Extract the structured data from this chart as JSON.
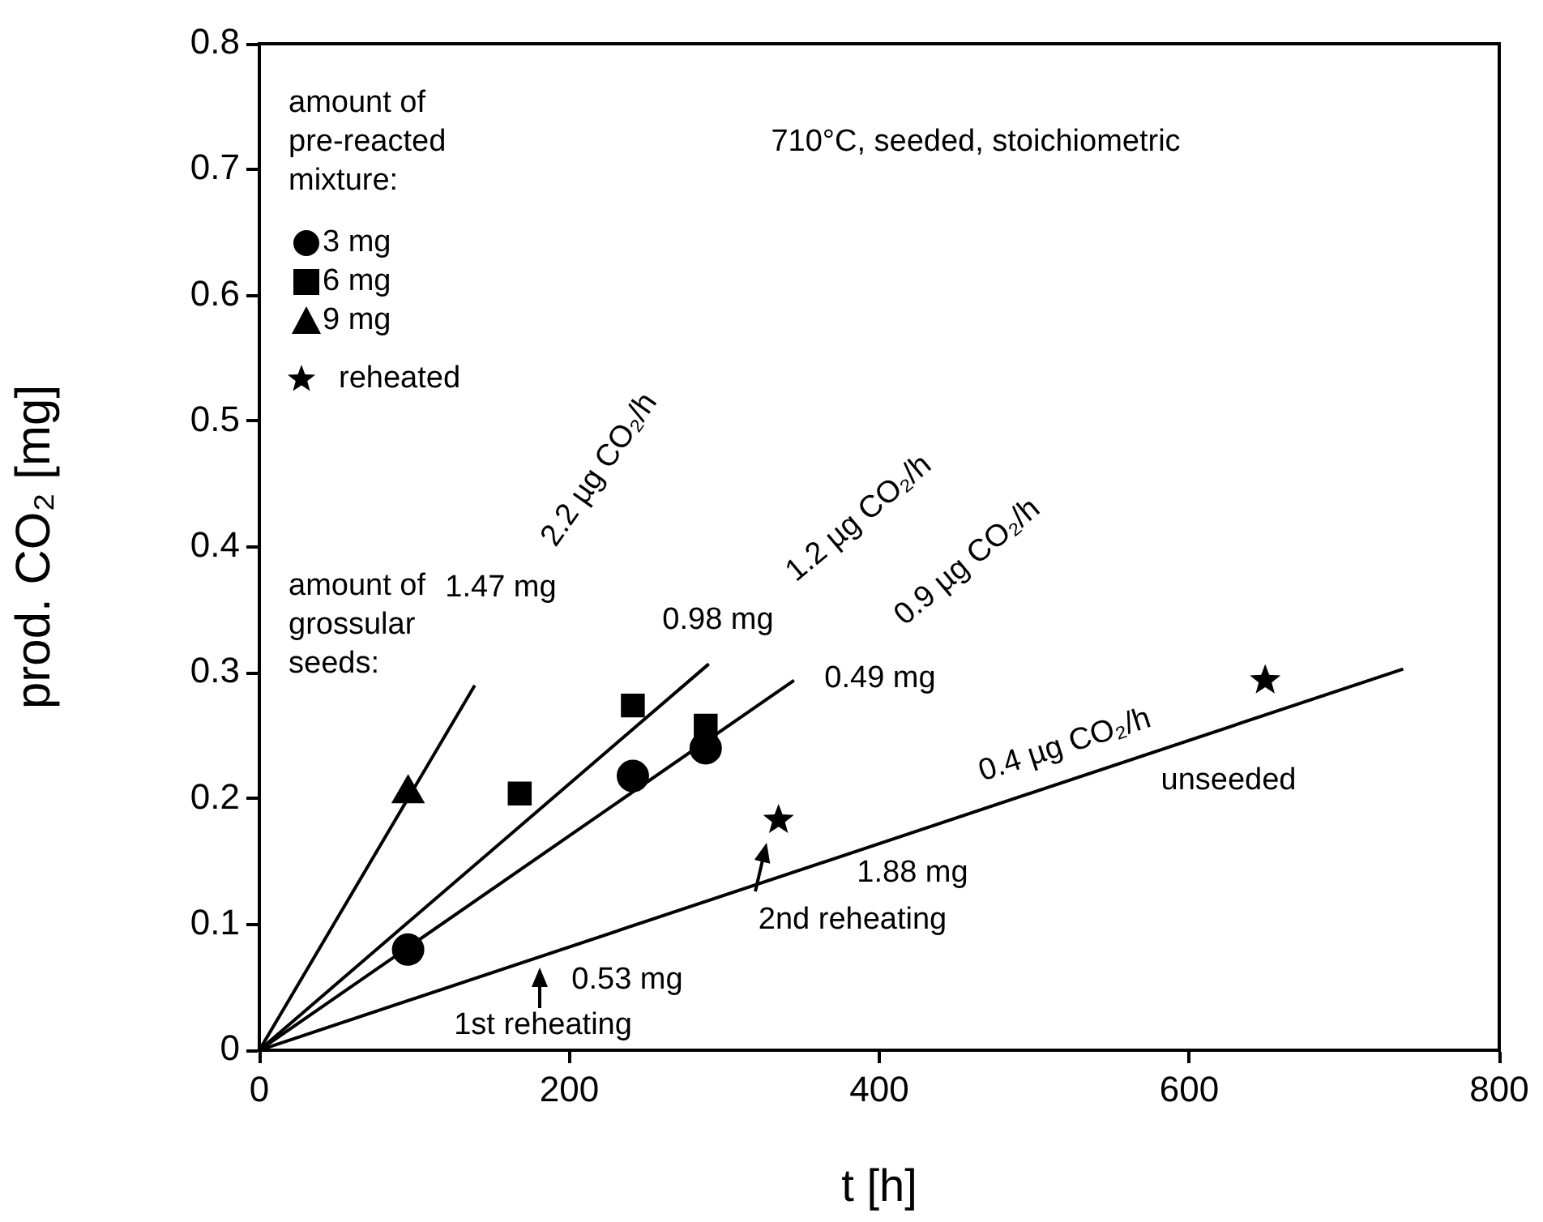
{
  "chart_data": {
    "type": "scatter",
    "title": "710°C, seeded, stoichiometric",
    "xlabel": "t [h]",
    "ylabel": "prod. CO₂ [mg]",
    "legend_title": "amount of pre-reacted mixture:",
    "legend": "top left",
    "grid": false,
    "xlim": [
      0,
      800
    ],
    "xticks": [
      0,
      200,
      400,
      600,
      800
    ],
    "ylim": [
      0,
      0.8
    ],
    "yticks": [
      0,
      0.1,
      0.2,
      0.3,
      0.4,
      0.5,
      0.6,
      0.7,
      0.8
    ],
    "series": [
      {
        "name": "3 mg",
        "marker": "circle",
        "color": "#000000",
        "x": [
          96,
          241,
          288
        ],
        "values": [
          0.08,
          0.218,
          0.24
        ]
      },
      {
        "name": "6 mg",
        "marker": "square",
        "color": "#000000",
        "x": [
          168,
          241,
          288
        ],
        "values": [
          0.204,
          0.274,
          0.258
        ]
      },
      {
        "name": "9 mg",
        "marker": "triangle",
        "color": "#000000",
        "x": [
          96
        ],
        "values": [
          0.204
        ]
      },
      {
        "name": "reheated",
        "marker": "star",
        "color": "#000000",
        "x": [
          335,
          649
        ],
        "values": [
          0.183,
          0.294
        ]
      },
      {
        "type": "line",
        "marker": "none",
        "color": "#000000",
        "x": [
          0,
          139
        ],
        "values": [
          0,
          0.29
        ]
      },
      {
        "type": "line",
        "marker": "none",
        "color": "#000000",
        "x": [
          0,
          290
        ],
        "values": [
          0,
          0.307
        ]
      },
      {
        "type": "line",
        "marker": "none",
        "color": "#000000",
        "x": [
          0,
          345
        ],
        "values": [
          0,
          0.294
        ]
      },
      {
        "type": "line",
        "marker": "none",
        "color": "#000000",
        "x": [
          0,
          738
        ],
        "values": [
          0,
          0.303
        ]
      }
    ],
    "annotations": [
      "amount of grossular seeds:",
      "1.47 mg",
      "2.2 µg CO₂/h",
      "0.98 mg",
      "1.2 µg CO₂/h",
      "0.49 mg",
      "0.9 µg CO₂/h",
      "0.4 µg CO₂/h",
      "unseeded",
      "1.88 mg",
      "2nd reheating",
      "0.53 mg",
      "1st reheating"
    ]
  }
}
